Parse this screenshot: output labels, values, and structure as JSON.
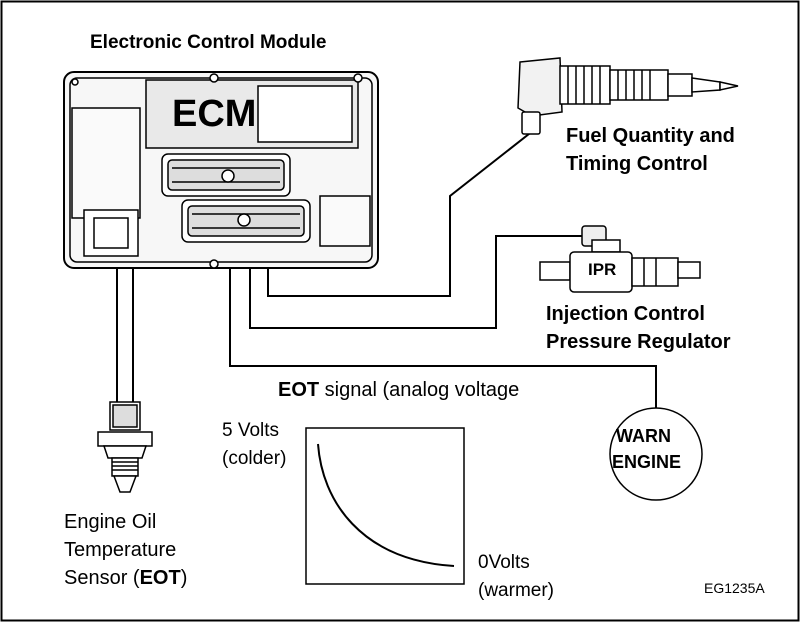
{
  "ecm": {
    "title": "Electronic Control Module",
    "logo": "ECM"
  },
  "fuel": {
    "line1": "Fuel Quantity and",
    "line2": "Timing Control"
  },
  "ipr": {
    "badge": "IPR",
    "line1": "Injection Control",
    "line2": "Pressure Regulator"
  },
  "eot_signal": {
    "bold": "EOT",
    "rest": " signal (analog voltage"
  },
  "graph": {
    "top_value": "5 Volts",
    "top_note": "(colder)",
    "bottom_value": "0Volts",
    "bottom_note": "(warmer)"
  },
  "warn": {
    "line1": "WARN",
    "line2": "ENGINE"
  },
  "sensor": {
    "line1": "Engine Oil",
    "line2": "Temperature",
    "line3_prefix": "Sensor (",
    "line3_bold": "EOT",
    "line3_suffix": ")"
  },
  "figure_code": "EG1235A"
}
